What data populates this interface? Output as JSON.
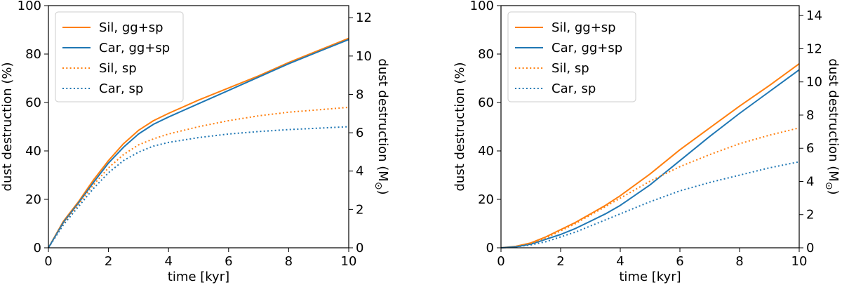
{
  "chart_data": [
    {
      "type": "line",
      "title": "",
      "xlabel": "time [kyr]",
      "ylabel": "dust destruction (%)",
      "y2label": "dust destruction (M⊙)",
      "xlim": [
        0,
        10
      ],
      "ylim": [
        0,
        100
      ],
      "y2lim": [
        0,
        12.63
      ],
      "xticks": [
        0,
        2,
        4,
        6,
        8,
        10
      ],
      "yticks": [
        0,
        20,
        40,
        60,
        80,
        100
      ],
      "y2ticks": [
        0,
        2,
        4,
        6,
        8,
        10,
        12
      ],
      "legend_position": "top-left",
      "x": [
        0,
        0.5,
        1,
        1.5,
        2,
        2.5,
        3,
        3.5,
        4,
        5,
        6,
        7,
        8,
        9,
        10
      ],
      "series": [
        {
          "name": "Sil, gg+sp",
          "color": "#ff7f0e",
          "style": "solid",
          "values": [
            0,
            11,
            19,
            28,
            36,
            43,
            48.5,
            52.5,
            55.5,
            61,
            66,
            71,
            76.5,
            81.5,
            86.5
          ]
        },
        {
          "name": "Car, gg+sp",
          "color": "#1f77b4",
          "style": "solid",
          "values": [
            0,
            10.5,
            18.5,
            27,
            35,
            41.5,
            47,
            51,
            54,
            59.5,
            65,
            70.5,
            76,
            81,
            86
          ]
        },
        {
          "name": "Sil, sp",
          "color": "#ff7f0e",
          "style": "dotted",
          "values": [
            0,
            10,
            18,
            26,
            33,
            38.5,
            42.5,
            45,
            47,
            50,
            52.5,
            54.5,
            56,
            57,
            58
          ]
        },
        {
          "name": "Car, sp",
          "color": "#1f77b4",
          "style": "dotted",
          "values": [
            0,
            9.5,
            17,
            24.5,
            31,
            36,
            39.5,
            42,
            43.5,
            45.5,
            47,
            48,
            48.8,
            49.4,
            50
          ]
        }
      ]
    },
    {
      "type": "line",
      "title": "",
      "xlabel": "time [kyr]",
      "ylabel": "dust destruction (%)",
      "y2label": "dust destruction (M⊙)",
      "xlim": [
        0,
        10
      ],
      "ylim": [
        0,
        100
      ],
      "y2lim": [
        0,
        14.6
      ],
      "xticks": [
        0,
        2,
        4,
        6,
        8,
        10
      ],
      "yticks": [
        0,
        20,
        40,
        60,
        80,
        100
      ],
      "y2ticks": [
        0,
        2,
        4,
        6,
        8,
        10,
        12,
        14
      ],
      "legend_position": "top-left",
      "x": [
        0,
        0.5,
        1,
        1.5,
        2,
        2.5,
        3,
        3.5,
        4,
        5,
        6,
        7,
        8,
        9,
        10
      ],
      "series": [
        {
          "name": "Sil, gg+sp",
          "color": "#ff7f0e",
          "style": "solid",
          "values": [
            0,
            0.6,
            2,
            4.5,
            7.5,
            10.5,
            14,
            17.5,
            21.5,
            30.5,
            40.5,
            49.5,
            58.5,
            67,
            76
          ]
        },
        {
          "name": "Car, gg+sp",
          "color": "#1f77b4",
          "style": "solid",
          "values": [
            0,
            0.4,
            1.5,
            3.5,
            5.5,
            8,
            11,
            14,
            17.5,
            26,
            36,
            46,
            55.5,
            64.5,
            73.5
          ]
        },
        {
          "name": "Sil, sp",
          "color": "#ff7f0e",
          "style": "dotted",
          "values": [
            0,
            0.5,
            1.8,
            4,
            7,
            10,
            13.5,
            17,
            20.5,
            27.5,
            33.5,
            38.5,
            43,
            46.5,
            49.5
          ]
        },
        {
          "name": "Car, sp",
          "color": "#1f77b4",
          "style": "dotted",
          "values": [
            0,
            0.4,
            1.2,
            2.5,
            4.5,
            6.5,
            9,
            11.5,
            14,
            19,
            23.5,
            27,
            30,
            33,
            35.5
          ]
        }
      ]
    }
  ]
}
